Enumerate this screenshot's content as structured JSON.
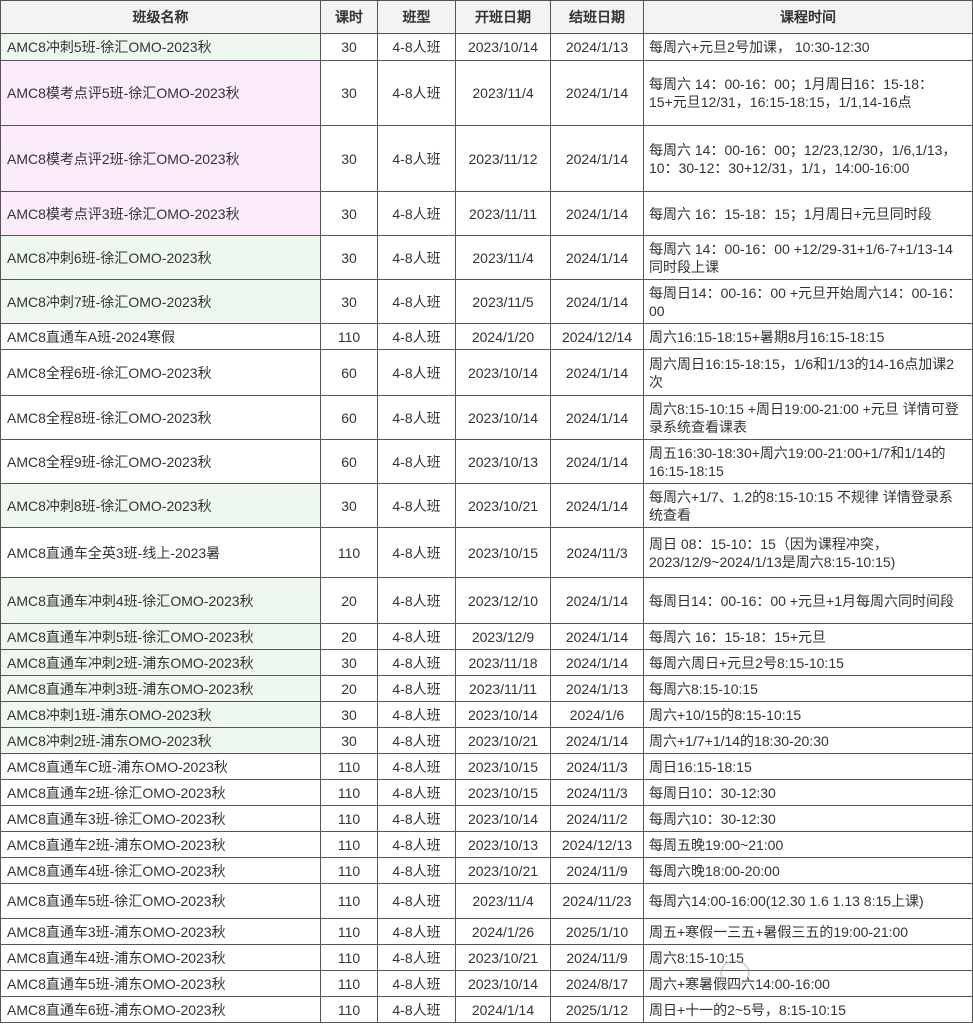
{
  "headers": [
    "班级名称",
    "课时",
    "班型",
    "开班日期",
    "结班日期",
    "课程时间"
  ],
  "colors": {
    "green_row": "#eef8ee",
    "pink_row": "#fcebfc",
    "header_bg": "#f3f3f3"
  },
  "rows": [
    {
      "name": "AMC8冲刺5班-徐汇OMO-2023秋",
      "hours": "30",
      "type": "4-8人班",
      "start": "2023/10/14",
      "end": "2024/1/13",
      "schedule": "每周六+元旦2号加课， 10:30-12:30",
      "hl": "green"
    },
    {
      "name": "AMC8模考点评5班-徐汇OMO-2023秋",
      "hours": "30",
      "type": "4-8人班",
      "start": "2023/11/4",
      "end": "2024/1/14",
      "schedule": "每周六 14：00-16：00；1月周日16：15-18：15+元旦12/31，16:15-18:15，1/1,14-16点",
      "hl": "pink"
    },
    {
      "name": "AMC8模考点评2班-徐汇OMO-2023秋",
      "hours": "30",
      "type": "4-8人班",
      "start": "2023/11/12",
      "end": "2024/1/14",
      "schedule": "每周六 14：00-16：00；12/23,12/30，1/6,1/13，10：30-12：30+12/31，1/1，14:00-16:00",
      "hl": "pink"
    },
    {
      "name": "AMC8模考点评3班-徐汇OMO-2023秋",
      "hours": "30",
      "type": "4-8人班",
      "start": "2023/11/11",
      "end": "2024/1/14",
      "schedule": "每周六 16：15-18：15；1月周日+元旦同时段",
      "hl": "pink"
    },
    {
      "name": "AMC8冲刺6班-徐汇OMO-2023秋",
      "hours": "30",
      "type": "4-8人班",
      "start": "2023/11/4",
      "end": "2024/1/14",
      "schedule": "每周六 14：00-16：00 +12/29-31+1/6-7+1/13-14同时段上课",
      "hl": "green"
    },
    {
      "name": "AMC8冲刺7班-徐汇OMO-2023秋",
      "hours": "30",
      "type": "4-8人班",
      "start": "2023/11/5",
      "end": "2024/1/14",
      "schedule": "每周日14：00-16：00 +元旦开始周六14：00-16：00",
      "hl": "green"
    },
    {
      "name": "AMC8直通车A班-2024寒假",
      "hours": "110",
      "type": "4-8人班",
      "start": "2024/1/20",
      "end": "2024/12/14",
      "schedule": "周六16:15-18:15+暑期8月16:15-18:15",
      "hl": ""
    },
    {
      "name": "AMC8全程6班-徐汇OMO-2023秋",
      "hours": "60",
      "type": "4-8人班",
      "start": "2023/10/14",
      "end": "2024/1/14",
      "schedule": "周六周日16:15-18:15，1/6和1/13的14-16点加课2次",
      "hl": ""
    },
    {
      "name": "AMC8全程8班-徐汇OMO-2023秋",
      "hours": "60",
      "type": "4-8人班",
      "start": "2023/10/14",
      "end": "2024/1/14",
      "schedule": "周六8:15-10:15 +周日19:00-21:00 +元旦 详情可登录系统查看课表",
      "hl": ""
    },
    {
      "name": "AMC8全程9班-徐汇OMO-2023秋",
      "hours": "60",
      "type": "4-8人班",
      "start": "2023/10/13",
      "end": "2024/1/14",
      "schedule": "周五16:30-18:30+周六19:00-21:00+1/7和1/14的16:15-18:15",
      "hl": ""
    },
    {
      "name": "AMC8冲刺8班-徐汇OMO-2023秋",
      "hours": "30",
      "type": "4-8人班",
      "start": "2023/10/21",
      "end": "2024/1/14",
      "schedule": "每周六+1/7、1.2的8:15-10:15 不规律 详情登录系统查看",
      "hl": "green"
    },
    {
      "name": "AMC8直通车全英3班-线上-2023暑",
      "hours": "110",
      "type": "4-8人班",
      "start": "2023/10/15",
      "end": "2024/11/3",
      "schedule": "周日 08：15-10：15（因为课程冲突，2023/12/9~2024/1/13是周六8:15-10:15)",
      "hl": ""
    },
    {
      "name": "AMC8直通车冲刺4班-徐汇OMO-2023秋",
      "hours": "20",
      "type": "4-8人班",
      "start": "2023/12/10",
      "end": "2024/1/14",
      "schedule": "每周日14：00-16：00 +元旦+1月每周六同时间段",
      "hl": "green"
    },
    {
      "name": "AMC8直通车冲刺5班-徐汇OMO-2023秋",
      "hours": "20",
      "type": "4-8人班",
      "start": "2023/12/9",
      "end": "2024/1/14",
      "schedule": "每周六 16：15-18：15+元旦",
      "hl": "green"
    },
    {
      "name": "AMC8直通车冲刺2班-浦东OMO-2023秋",
      "hours": "30",
      "type": "4-8人班",
      "start": "2023/11/18",
      "end": "2024/1/14",
      "schedule": "每周六周日+元旦2号8:15-10:15",
      "hl": "green"
    },
    {
      "name": "AMC8直通车冲刺3班-浦东OMO-2023秋",
      "hours": "20",
      "type": "4-8人班",
      "start": "2023/11/11",
      "end": "2024/1/13",
      "schedule": "每周六8:15-10:15",
      "hl": "green"
    },
    {
      "name": "AMC8冲刺1班-浦东OMO-2023秋",
      "hours": "30",
      "type": "4-8人班",
      "start": "2023/10/14",
      "end": "2024/1/6",
      "schedule": "周六+10/15的8:15-10:15",
      "hl": "green"
    },
    {
      "name": "AMC8冲刺2班-浦东OMO-2023秋",
      "hours": "30",
      "type": "4-8人班",
      "start": "2023/10/21",
      "end": "2024/1/14",
      "schedule": "周六+1/7+1/14的18:30-20:30",
      "hl": "green"
    },
    {
      "name": "AMC8直通车C班-浦东OMO-2023秋",
      "hours": "110",
      "type": "4-8人班",
      "start": "2023/10/15",
      "end": "2024/11/3",
      "schedule": "周日16:15-18:15",
      "hl": ""
    },
    {
      "name": "AMC8直通车2班-徐汇OMO-2023秋",
      "hours": "110",
      "type": "4-8人班",
      "start": "2023/10/15",
      "end": "2024/11/3",
      "schedule": "每周日10：30-12:30",
      "hl": ""
    },
    {
      "name": "AMC8直通车3班-徐汇OMO-2023秋",
      "hours": "110",
      "type": "4-8人班",
      "start": "2023/10/14",
      "end": "2024/11/2",
      "schedule": "每周六10：30-12:30",
      "hl": ""
    },
    {
      "name": "AMC8直通车2班-浦东OMO-2023秋",
      "hours": "110",
      "type": "4-8人班",
      "start": "2023/10/13",
      "end": "2024/12/13",
      "schedule": "每周五晚19:00~21:00",
      "hl": ""
    },
    {
      "name": "AMC8直通车4班-徐汇OMO-2023秋",
      "hours": "110",
      "type": "4-8人班",
      "start": "2023/10/21",
      "end": "2024/11/9",
      "schedule": "每周六晚18:00-20:00",
      "hl": ""
    },
    {
      "name": "AMC8直通车5班-徐汇OMO-2023秋",
      "hours": "110",
      "type": "4-8人班",
      "start": "2023/11/4",
      "end": "2024/11/23",
      "schedule": "每周六14:00-16:00(12.30 1.6 1.13 8:15上课)",
      "hl": ""
    },
    {
      "name": "AMC8直通车3班-浦东OMO-2023秋",
      "hours": "110",
      "type": "4-8人班",
      "start": "2024/1/26",
      "end": "2025/1/10",
      "schedule": "周五+寒假一三五+暑假三五的19:00-21:00",
      "hl": ""
    },
    {
      "name": "AMC8直通车4班-浦东OMO-2023秋",
      "hours": "110",
      "type": "4-8人班",
      "start": "2023/10/21",
      "end": "2024/11/9",
      "schedule": "周六8:15-10:15",
      "hl": ""
    },
    {
      "name": "AMC8直通车5班-浦东OMO-2023秋",
      "hours": "110",
      "type": "4-8人班",
      "start": "2023/10/14",
      "end": "2024/8/17",
      "schedule": "周六+寒暑假四六14:00-16:00",
      "hl": ""
    },
    {
      "name": "AMC8直通车6班-浦东OMO-2023秋",
      "hours": "110",
      "type": "4-8人班",
      "start": "2024/1/14",
      "end": "2025/1/12",
      "schedule": "周日+十一的2~5号，8:15-10:15",
      "hl": ""
    }
  ]
}
